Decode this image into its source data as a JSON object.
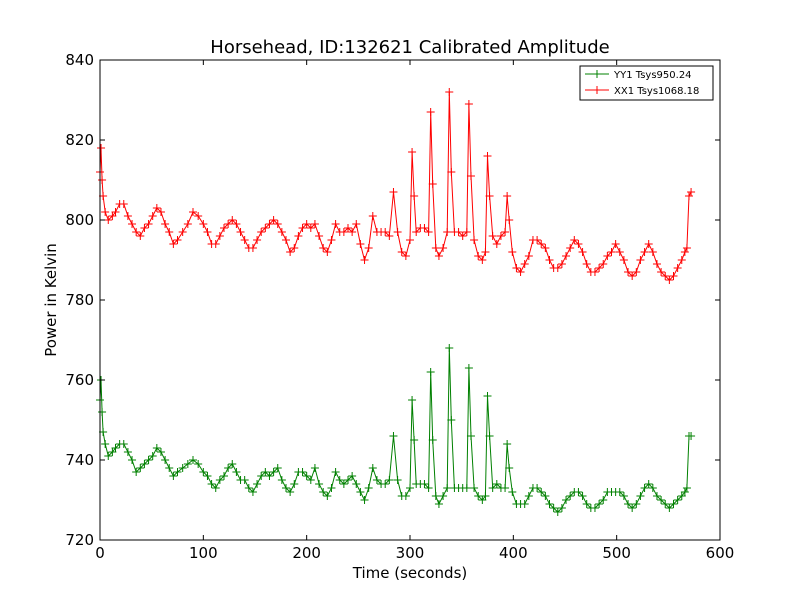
{
  "chart_data": {
    "type": "line",
    "title": "Horsehead, ID:132621 Calibrated Amplitude",
    "xlabel": "Time (seconds)",
    "ylabel": "Power in Kelvin",
    "xlim": [
      0,
      600
    ],
    "ylim": [
      720,
      840
    ],
    "xticks": [
      0,
      100,
      200,
      300,
      400,
      500,
      600
    ],
    "yticks": [
      720,
      740,
      760,
      780,
      800,
      820,
      840
    ],
    "xtick_labels": [
      "0",
      "100",
      "200",
      "300",
      "400",
      "500",
      "600"
    ],
    "ytick_labels": [
      "720",
      "740",
      "760",
      "780",
      "800",
      "820",
      "840"
    ],
    "grid": false,
    "legend_position": "top-right",
    "marker": "+",
    "series": [
      {
        "name": "YY1 Tsys950.24",
        "color": "#008000",
        "points": [
          [
            0,
            755
          ],
          [
            1,
            760
          ],
          [
            2,
            752
          ],
          [
            3,
            747
          ],
          [
            5,
            744
          ],
          [
            8,
            741
          ],
          [
            12,
            742
          ],
          [
            15,
            743
          ],
          [
            19,
            744
          ],
          [
            23,
            744
          ],
          [
            27,
            742
          ],
          [
            31,
            740
          ],
          [
            35,
            737
          ],
          [
            39,
            738
          ],
          [
            43,
            739
          ],
          [
            47,
            740
          ],
          [
            51,
            741
          ],
          [
            55,
            743
          ],
          [
            59,
            742
          ],
          [
            63,
            740
          ],
          [
            67,
            738
          ],
          [
            71,
            736
          ],
          [
            75,
            737
          ],
          [
            80,
            738
          ],
          [
            85,
            739
          ],
          [
            90,
            740
          ],
          [
            95,
            739
          ],
          [
            100,
            737
          ],
          [
            104,
            736
          ],
          [
            108,
            734
          ],
          [
            112,
            733
          ],
          [
            116,
            735
          ],
          [
            120,
            736
          ],
          [
            124,
            738
          ],
          [
            128,
            739
          ],
          [
            132,
            737
          ],
          [
            136,
            735
          ],
          [
            140,
            735
          ],
          [
            144,
            733
          ],
          [
            148,
            732
          ],
          [
            152,
            734
          ],
          [
            156,
            736
          ],
          [
            160,
            737
          ],
          [
            164,
            736
          ],
          [
            168,
            737
          ],
          [
            172,
            738
          ],
          [
            176,
            735
          ],
          [
            180,
            733
          ],
          [
            184,
            732
          ],
          [
            188,
            734
          ],
          [
            192,
            737
          ],
          [
            196,
            737
          ],
          [
            200,
            736
          ],
          [
            204,
            735
          ],
          [
            208,
            738
          ],
          [
            212,
            734
          ],
          [
            216,
            732
          ],
          [
            220,
            731
          ],
          [
            224,
            733
          ],
          [
            228,
            737
          ],
          [
            232,
            735
          ],
          [
            236,
            734
          ],
          [
            240,
            735
          ],
          [
            244,
            736
          ],
          [
            248,
            734
          ],
          [
            252,
            732
          ],
          [
            256,
            730
          ],
          [
            260,
            733
          ],
          [
            264,
            738
          ],
          [
            268,
            735
          ],
          [
            272,
            734
          ],
          [
            276,
            734
          ],
          [
            280,
            735
          ],
          [
            284,
            746
          ],
          [
            288,
            735
          ],
          [
            292,
            731
          ],
          [
            296,
            731
          ],
          [
            300,
            733
          ],
          [
            302,
            755
          ],
          [
            304,
            745
          ],
          [
            306,
            734
          ],
          [
            310,
            734
          ],
          [
            314,
            734
          ],
          [
            318,
            733
          ],
          [
            320,
            762
          ],
          [
            322,
            745
          ],
          [
            325,
            731
          ],
          [
            328,
            729
          ],
          [
            332,
            731
          ],
          [
            336,
            733
          ],
          [
            338,
            768
          ],
          [
            340,
            750
          ],
          [
            343,
            733
          ],
          [
            347,
            733
          ],
          [
            351,
            733
          ],
          [
            355,
            733
          ],
          [
            357,
            763
          ],
          [
            359,
            746
          ],
          [
            362,
            733
          ],
          [
            366,
            731
          ],
          [
            370,
            730
          ],
          [
            373,
            731
          ],
          [
            375,
            756
          ],
          [
            377,
            746
          ],
          [
            380,
            733
          ],
          [
            384,
            734
          ],
          [
            388,
            733
          ],
          [
            392,
            733
          ],
          [
            394,
            744
          ],
          [
            396,
            738
          ],
          [
            399,
            732
          ],
          [
            403,
            729
          ],
          [
            407,
            729
          ],
          [
            411,
            729
          ],
          [
            415,
            731
          ],
          [
            419,
            733
          ],
          [
            423,
            733
          ],
          [
            427,
            732
          ],
          [
            431,
            731
          ],
          [
            435,
            729
          ],
          [
            439,
            728
          ],
          [
            443,
            727
          ],
          [
            447,
            728
          ],
          [
            451,
            730
          ],
          [
            455,
            731
          ],
          [
            459,
            732
          ],
          [
            463,
            732
          ],
          [
            467,
            731
          ],
          [
            471,
            729
          ],
          [
            475,
            728
          ],
          [
            479,
            728
          ],
          [
            483,
            729
          ],
          [
            487,
            730
          ],
          [
            491,
            732
          ],
          [
            495,
            732
          ],
          [
            499,
            732
          ],
          [
            503,
            732
          ],
          [
            507,
            731
          ],
          [
            511,
            729
          ],
          [
            515,
            728
          ],
          [
            519,
            729
          ],
          [
            523,
            731
          ],
          [
            527,
            733
          ],
          [
            531,
            734
          ],
          [
            535,
            733
          ],
          [
            539,
            731
          ],
          [
            543,
            730
          ],
          [
            547,
            729
          ],
          [
            551,
            728
          ],
          [
            555,
            729
          ],
          [
            559,
            730
          ],
          [
            563,
            731
          ],
          [
            566,
            732
          ],
          [
            568,
            733
          ],
          [
            570,
            746
          ],
          [
            572,
            746
          ]
        ]
      },
      {
        "name": "XX1 Tsys1068.18",
        "color": "#ff0000",
        "points": [
          [
            0,
            812
          ],
          [
            1,
            818
          ],
          [
            2,
            810
          ],
          [
            3,
            806
          ],
          [
            5,
            802
          ],
          [
            8,
            800
          ],
          [
            12,
            801
          ],
          [
            15,
            802
          ],
          [
            19,
            804
          ],
          [
            23,
            804
          ],
          [
            27,
            801
          ],
          [
            31,
            799
          ],
          [
            35,
            797
          ],
          [
            39,
            796
          ],
          [
            43,
            798
          ],
          [
            47,
            799
          ],
          [
            51,
            801
          ],
          [
            55,
            803
          ],
          [
            59,
            802
          ],
          [
            63,
            799
          ],
          [
            67,
            797
          ],
          [
            71,
            794
          ],
          [
            75,
            795
          ],
          [
            80,
            797
          ],
          [
            85,
            799
          ],
          [
            90,
            802
          ],
          [
            95,
            801
          ],
          [
            100,
            799
          ],
          [
            104,
            797
          ],
          [
            108,
            794
          ],
          [
            112,
            794
          ],
          [
            116,
            796
          ],
          [
            120,
            798
          ],
          [
            124,
            799
          ],
          [
            128,
            800
          ],
          [
            132,
            799
          ],
          [
            136,
            797
          ],
          [
            140,
            795
          ],
          [
            144,
            793
          ],
          [
            148,
            793
          ],
          [
            152,
            795
          ],
          [
            156,
            797
          ],
          [
            160,
            798
          ],
          [
            164,
            799
          ],
          [
            168,
            800
          ],
          [
            172,
            799
          ],
          [
            176,
            797
          ],
          [
            180,
            795
          ],
          [
            184,
            792
          ],
          [
            188,
            793
          ],
          [
            192,
            796
          ],
          [
            196,
            798
          ],
          [
            200,
            799
          ],
          [
            204,
            798
          ],
          [
            208,
            799
          ],
          [
            212,
            796
          ],
          [
            216,
            793
          ],
          [
            220,
            792
          ],
          [
            224,
            795
          ],
          [
            228,
            799
          ],
          [
            232,
            797
          ],
          [
            236,
            797
          ],
          [
            240,
            798
          ],
          [
            244,
            797
          ],
          [
            248,
            799
          ],
          [
            252,
            794
          ],
          [
            256,
            790
          ],
          [
            260,
            793
          ],
          [
            264,
            801
          ],
          [
            268,
            797
          ],
          [
            272,
            797
          ],
          [
            276,
            797
          ],
          [
            280,
            796
          ],
          [
            284,
            807
          ],
          [
            288,
            797
          ],
          [
            292,
            792
          ],
          [
            296,
            791
          ],
          [
            300,
            795
          ],
          [
            302,
            817
          ],
          [
            304,
            806
          ],
          [
            306,
            797
          ],
          [
            310,
            798
          ],
          [
            314,
            798
          ],
          [
            318,
            797
          ],
          [
            320,
            827
          ],
          [
            322,
            809
          ],
          [
            325,
            793
          ],
          [
            328,
            791
          ],
          [
            332,
            793
          ],
          [
            336,
            797
          ],
          [
            338,
            832
          ],
          [
            340,
            812
          ],
          [
            343,
            797
          ],
          [
            347,
            797
          ],
          [
            351,
            796
          ],
          [
            355,
            797
          ],
          [
            357,
            829
          ],
          [
            359,
            811
          ],
          [
            362,
            795
          ],
          [
            366,
            791
          ],
          [
            370,
            790
          ],
          [
            373,
            792
          ],
          [
            375,
            816
          ],
          [
            377,
            806
          ],
          [
            380,
            796
          ],
          [
            384,
            794
          ],
          [
            388,
            796
          ],
          [
            392,
            797
          ],
          [
            394,
            806
          ],
          [
            396,
            800
          ],
          [
            399,
            792
          ],
          [
            403,
            788
          ],
          [
            407,
            787
          ],
          [
            411,
            789
          ],
          [
            415,
            791
          ],
          [
            419,
            795
          ],
          [
            423,
            795
          ],
          [
            427,
            794
          ],
          [
            431,
            793
          ],
          [
            435,
            790
          ],
          [
            439,
            788
          ],
          [
            443,
            788
          ],
          [
            447,
            789
          ],
          [
            451,
            791
          ],
          [
            455,
            793
          ],
          [
            459,
            795
          ],
          [
            463,
            794
          ],
          [
            467,
            792
          ],
          [
            471,
            789
          ],
          [
            475,
            787
          ],
          [
            479,
            787
          ],
          [
            483,
            788
          ],
          [
            487,
            789
          ],
          [
            491,
            791
          ],
          [
            495,
            792
          ],
          [
            499,
            794
          ],
          [
            503,
            792
          ],
          [
            507,
            790
          ],
          [
            511,
            787
          ],
          [
            515,
            786
          ],
          [
            519,
            787
          ],
          [
            523,
            790
          ],
          [
            527,
            792
          ],
          [
            531,
            794
          ],
          [
            535,
            792
          ],
          [
            539,
            789
          ],
          [
            543,
            787
          ],
          [
            547,
            786
          ],
          [
            551,
            785
          ],
          [
            555,
            786
          ],
          [
            559,
            788
          ],
          [
            563,
            790
          ],
          [
            566,
            792
          ],
          [
            568,
            793
          ],
          [
            570,
            806
          ],
          [
            572,
            807
          ]
        ]
      }
    ]
  }
}
